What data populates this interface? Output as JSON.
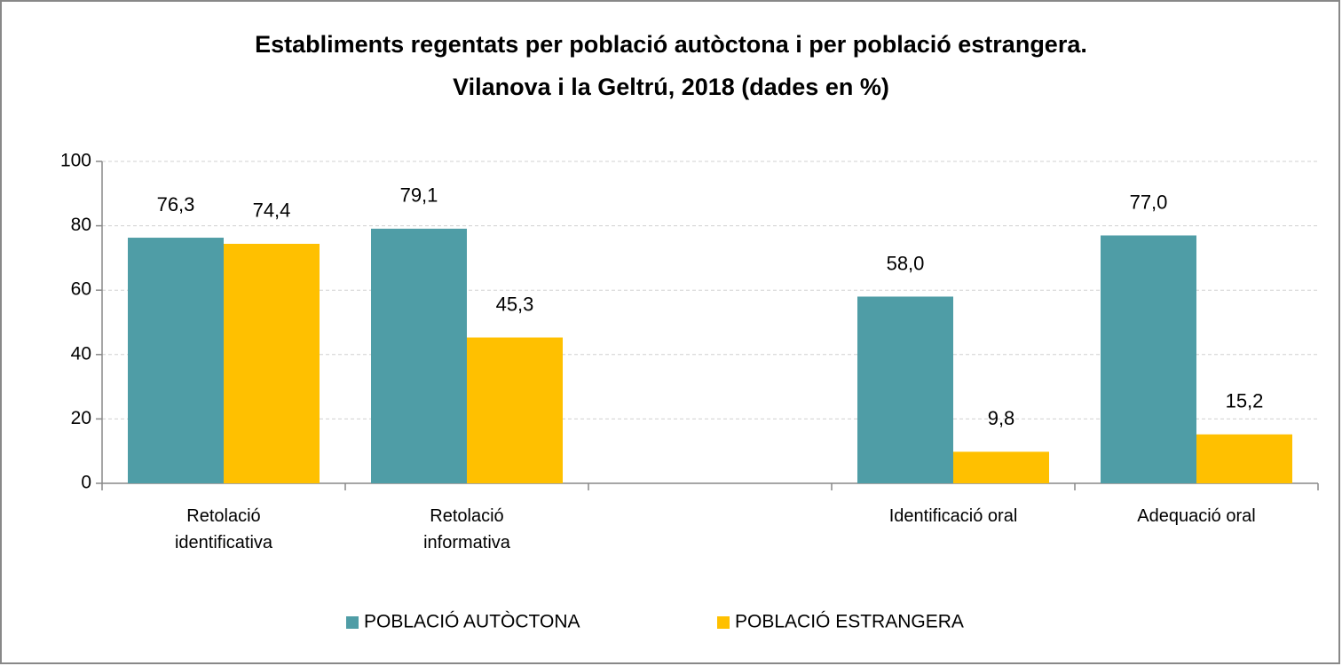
{
  "chart_data": {
    "type": "bar",
    "title": [
      "Establiments regentats per població autòctona i per població estrangera.",
      "Vilanova i la Geltrú, 2018 (dades en %)"
    ],
    "categories": [
      "Retolació identificativa",
      "Retolació informativa",
      null,
      "Identificació oral",
      "Adequació oral"
    ],
    "series": [
      {
        "name": "POBLACIÓ AUTÒCTONA",
        "color": "#4f9da6",
        "values": [
          76.3,
          79.1,
          null,
          58.0,
          77.0
        ],
        "value_labels": [
          "76,3",
          "79,1",
          null,
          "58,0",
          "77,0"
        ]
      },
      {
        "name": "POBLACIÓ ESTRANGERA",
        "color": "#ffc000",
        "values": [
          74.4,
          45.3,
          null,
          9.8,
          15.2
        ],
        "value_labels": [
          "74,4",
          "45,3",
          null,
          "9,8",
          "15,2"
        ]
      }
    ],
    "ylim": [
      0,
      100
    ],
    "yticks": [
      0,
      20,
      40,
      60,
      80,
      100
    ],
    "grid": true,
    "legend": "bottom"
  }
}
